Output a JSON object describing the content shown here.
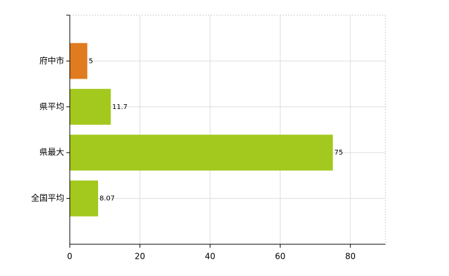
{
  "chart_data": {
    "type": "hbar",
    "categories": [
      "府中市",
      "県平均",
      "県最大",
      "全国平均"
    ],
    "values": [
      5,
      11.7,
      75,
      8.07
    ],
    "colors": [
      "#e07b1f",
      "#a3c91e",
      "#a3c91e",
      "#a3c91e"
    ],
    "xlim": [
      0,
      90
    ],
    "xticks": [
      0,
      20,
      40,
      60,
      80
    ],
    "grid": true
  }
}
